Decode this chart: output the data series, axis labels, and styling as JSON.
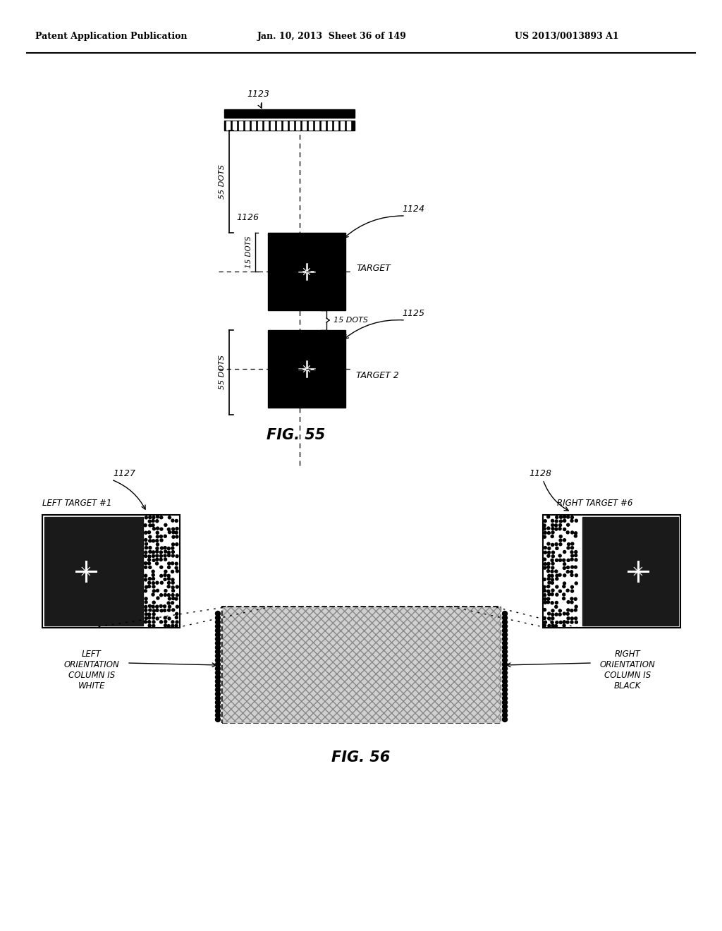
{
  "header_left": "Patent Application Publication",
  "header_mid": "Jan. 10, 2013  Sheet 36 of 149",
  "header_right": "US 2013/0013893 A1",
  "fig55_label": "FIG. 55",
  "fig56_label": "FIG. 56",
  "bg_color": "#ffffff",
  "fg_color": "#000000",
  "ref_1123": "1123",
  "ref_1124": "1124",
  "ref_1125": "1125",
  "ref_1126": "1126",
  "label_55dots_upper": "55 DOTS",
  "label_55dots_lower": "55 DOTS",
  "label_15dots_vert": "15 DOTS",
  "label_15dots_horiz": "15 DOTS",
  "label_target": "TARGET",
  "label_target2": "TARGET 2",
  "ref_1127": "1127",
  "ref_1128": "1128",
  "label_left_target": "LEFT TARGET #1",
  "label_right_target": "RIGHT TARGET #6",
  "label_left_orient": "LEFT\nORIENTATION\nCOLUMN IS\nWHITE",
  "label_right_orient": "RIGHT\nORIENTATION\nCOLUMN IS\nBLACK"
}
